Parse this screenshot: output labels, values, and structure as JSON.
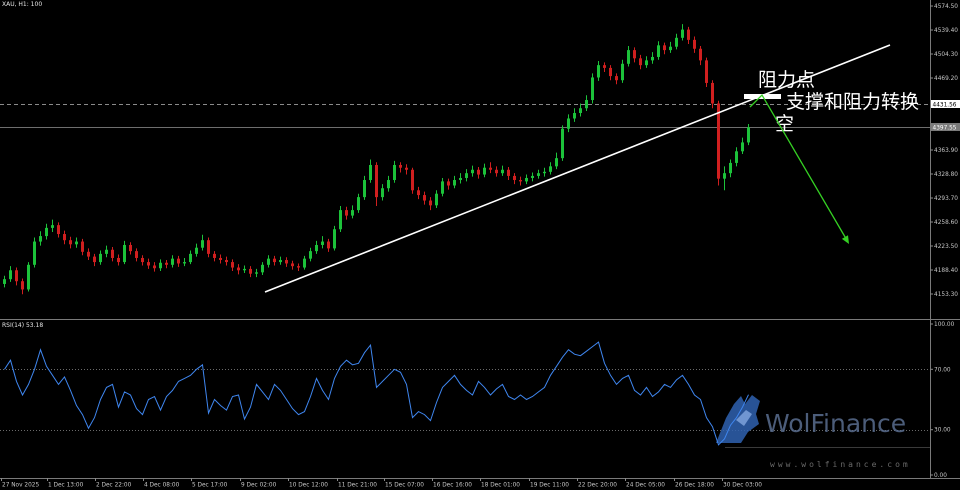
{
  "chart_data": [
    {
      "type": "candlestick",
      "title": "XAU, H1: 100",
      "x_ticks": [
        "27 Nov 2025",
        "1 Dec 13:00",
        "2 Dec 22:00",
        "4 Dec 08:00",
        "5 Dec 17:00",
        "9 Dec 02:00",
        "10 Dec 12:00",
        "11 Dec 21:00",
        "15 Dec 07:00",
        "16 Dec 16:00",
        "18 Dec 01:00",
        "19 Dec 11:00",
        "22 Dec 20:00",
        "24 Dec 05:00",
        "26 Dec 18:00",
        "30 Dec 03:00"
      ],
      "y_ticks": [
        "4574.50",
        "4539.40",
        "4504.30",
        "4469.20",
        "4363.90",
        "4328.80",
        "4293.70",
        "4258.60",
        "4223.50",
        "4188.40",
        "4153.30"
      ],
      "ylim": [
        4118.2,
        4583.3
      ],
      "grid": false,
      "levels": [
        {
          "label": "4431.56",
          "style": "dashed",
          "line_color": "#8a8a8a",
          "box_color": "#ffffff",
          "text_color": "#000000"
        },
        {
          "label": "4397.55",
          "style": "solid",
          "line_color": "#6e6e6e",
          "box_color": "#7a7a7a",
          "text_color": "#ffffff"
        }
      ],
      "colors": {
        "bull": "#1cc23a",
        "bear": "#d01f1f",
        "trendline": "#ffffff",
        "arrow": "#35d023"
      },
      "ohlc": [
        [
          4168,
          4180,
          4163,
          4175
        ],
        [
          4175,
          4194,
          4171,
          4188
        ],
        [
          4188,
          4192,
          4166,
          4172
        ],
        [
          4172,
          4176,
          4153,
          4160
        ],
        [
          4160,
          4200,
          4157,
          4196
        ],
        [
          4196,
          4236,
          4192,
          4230
        ],
        [
          4230,
          4245,
          4224,
          4238
        ],
        [
          4238,
          4256,
          4233,
          4250
        ],
        [
          4250,
          4262,
          4244,
          4254
        ],
        [
          4254,
          4258,
          4236,
          4241
        ],
        [
          4241,
          4246,
          4226,
          4232
        ],
        [
          4232,
          4237,
          4220,
          4226
        ],
        [
          4226,
          4236,
          4221,
          4230
        ],
        [
          4230,
          4234,
          4210,
          4215
        ],
        [
          4215,
          4220,
          4203,
          4208
        ],
        [
          4208,
          4212,
          4194,
          4200
        ],
        [
          4200,
          4217,
          4196,
          4212
        ],
        [
          4212,
          4224,
          4207,
          4218
        ],
        [
          4218,
          4222,
          4201,
          4206
        ],
        [
          4206,
          4211,
          4195,
          4200
        ],
        [
          4200,
          4231,
          4197,
          4225
        ],
        [
          4225,
          4229,
          4211,
          4216
        ],
        [
          4216,
          4220,
          4201,
          4206
        ],
        [
          4206,
          4210,
          4195,
          4200
        ],
        [
          4200,
          4205,
          4190,
          4195
        ],
        [
          4195,
          4200,
          4186,
          4191
        ],
        [
          4191,
          4204,
          4187,
          4199
        ],
        [
          4199,
          4203,
          4191,
          4196
        ],
        [
          4196,
          4210,
          4192,
          4205
        ],
        [
          4205,
          4209,
          4193,
          4198
        ],
        [
          4198,
          4206,
          4194,
          4200
        ],
        [
          4200,
          4217,
          4197,
          4212
        ],
        [
          4212,
          4227,
          4208,
          4221
        ],
        [
          4221,
          4240,
          4217,
          4232
        ],
        [
          4232,
          4236,
          4207,
          4212
        ],
        [
          4212,
          4216,
          4201,
          4206
        ],
        [
          4206,
          4211,
          4198,
          4203
        ],
        [
          4203,
          4208,
          4195,
          4200
        ],
        [
          4200,
          4204,
          4187,
          4192
        ],
        [
          4192,
          4197,
          4182,
          4188
        ],
        [
          4188,
          4195,
          4184,
          4190
        ],
        [
          4190,
          4194,
          4178,
          4183
        ],
        [
          4183,
          4190,
          4178,
          4185
        ],
        [
          4185,
          4200,
          4181,
          4196
        ],
        [
          4196,
          4210,
          4192,
          4205
        ],
        [
          4205,
          4209,
          4195,
          4200
        ],
        [
          4200,
          4208,
          4196,
          4203
        ],
        [
          4203,
          4207,
          4193,
          4198
        ],
        [
          4198,
          4202,
          4189,
          4194
        ],
        [
          4194,
          4198,
          4187,
          4192
        ],
        [
          4192,
          4209,
          4189,
          4205
        ],
        [
          4205,
          4221,
          4201,
          4216
        ],
        [
          4216,
          4231,
          4212,
          4225
        ],
        [
          4225,
          4238,
          4220,
          4230
        ],
        [
          4230,
          4234,
          4215,
          4220
        ],
        [
          4220,
          4253,
          4217,
          4248
        ],
        [
          4248,
          4282,
          4244,
          4276
        ],
        [
          4276,
          4281,
          4262,
          4268
        ],
        [
          4268,
          4283,
          4264,
          4276
        ],
        [
          4276,
          4300,
          4272,
          4295
        ],
        [
          4295,
          4326,
          4291,
          4320
        ],
        [
          4320,
          4350,
          4316,
          4342
        ],
        [
          4342,
          4346,
          4282,
          4295
        ],
        [
          4295,
          4314,
          4290,
          4308
        ],
        [
          4308,
          4326,
          4303,
          4320
        ],
        [
          4320,
          4348,
          4316,
          4342
        ],
        [
          4342,
          4346,
          4331,
          4338
        ],
        [
          4338,
          4343,
          4328,
          4335
        ],
        [
          4335,
          4338,
          4300,
          4305
        ],
        [
          4305,
          4310,
          4292,
          4298
        ],
        [
          4298,
          4303,
          4284,
          4290
        ],
        [
          4290,
          4295,
          4276,
          4283
        ],
        [
          4283,
          4305,
          4279,
          4300
        ],
        [
          4300,
          4323,
          4296,
          4318
        ],
        [
          4318,
          4322,
          4306,
          4312
        ],
        [
          4312,
          4326,
          4308,
          4320
        ],
        [
          4320,
          4330,
          4315,
          4323
        ],
        [
          4323,
          4336,
          4318,
          4330
        ],
        [
          4330,
          4341,
          4325,
          4335
        ],
        [
          4335,
          4339,
          4322,
          4328
        ],
        [
          4328,
          4344,
          4324,
          4338
        ],
        [
          4338,
          4346,
          4330,
          4335
        ],
        [
          4335,
          4340,
          4325,
          4330
        ],
        [
          4330,
          4341,
          4326,
          4335
        ],
        [
          4335,
          4339,
          4320,
          4326
        ],
        [
          4326,
          4330,
          4314,
          4320
        ],
        [
          4320,
          4325,
          4312,
          4318
        ],
        [
          4318,
          4328,
          4314,
          4323
        ],
        [
          4323,
          4331,
          4318,
          4326
        ],
        [
          4326,
          4335,
          4322,
          4330
        ],
        [
          4330,
          4338,
          4325,
          4332
        ],
        [
          4332,
          4346,
          4328,
          4340
        ],
        [
          4340,
          4360,
          4336,
          4352
        ],
        [
          4352,
          4400,
          4348,
          4395
        ],
        [
          4395,
          4416,
          4390,
          4410
        ],
        [
          4410,
          4425,
          4405,
          4418
        ],
        [
          4418,
          4432,
          4413,
          4425
        ],
        [
          4425,
          4444,
          4421,
          4437
        ],
        [
          4437,
          4476,
          4432,
          4470
        ],
        [
          4470,
          4494,
          4465,
          4488
        ],
        [
          4488,
          4492,
          4478,
          4484
        ],
        [
          4484,
          4488,
          4466,
          4472
        ],
        [
          4472,
          4476,
          4460,
          4466
        ],
        [
          4466,
          4496,
          4462,
          4490
        ],
        [
          4490,
          4516,
          4486,
          4510
        ],
        [
          4510,
          4514,
          4492,
          4498
        ],
        [
          4498,
          4503,
          4482,
          4488
        ],
        [
          4488,
          4501,
          4484,
          4495
        ],
        [
          4495,
          4507,
          4490,
          4500
        ],
        [
          4500,
          4523,
          4496,
          4517
        ],
        [
          4517,
          4521,
          4504,
          4510
        ],
        [
          4510,
          4522,
          4506,
          4515
        ],
        [
          4515,
          4534,
          4511,
          4528
        ],
        [
          4528,
          4548,
          4524,
          4540
        ],
        [
          4540,
          4544,
          4519,
          4525
        ],
        [
          4525,
          4530,
          4506,
          4512
        ],
        [
          4512,
          4516,
          4488,
          4495
        ],
        [
          4495,
          4499,
          4456,
          4462
        ],
        [
          4462,
          4466,
          4425,
          4432
        ],
        [
          4432,
          4436,
          4312,
          4322
        ],
        [
          4322,
          4340,
          4305,
          4330
        ],
        [
          4330,
          4350,
          4324,
          4345
        ],
        [
          4345,
          4368,
          4340,
          4362
        ],
        [
          4362,
          4382,
          4358,
          4375
        ],
        [
          4375,
          4402,
          4371,
          4397
        ]
      ]
    },
    {
      "type": "line",
      "label": "RSI(14) 53.18",
      "ylim": [
        0,
        100
      ],
      "y_ticks": [
        "100.00",
        "70.00",
        "30.00",
        "0.00"
      ],
      "levels": [
        70,
        30
      ],
      "color": "#3f86ef",
      "values": [
        70,
        76,
        62,
        53,
        60,
        70,
        83,
        72,
        66,
        60,
        65,
        56,
        46,
        40,
        31,
        38,
        50,
        58,
        60,
        45,
        55,
        53,
        44,
        40,
        50,
        52,
        43,
        52,
        56,
        62,
        64,
        66,
        70,
        73,
        41,
        50,
        46,
        43,
        52,
        53,
        37,
        45,
        60,
        55,
        50,
        60,
        56,
        50,
        44,
        40,
        42,
        52,
        64,
        56,
        50,
        64,
        72,
        76,
        73,
        74,
        81,
        86,
        58,
        62,
        66,
        70,
        68,
        60,
        38,
        42,
        40,
        36,
        48,
        58,
        62,
        66,
        60,
        56,
        53,
        62,
        58,
        53,
        57,
        60,
        52,
        50,
        53,
        50,
        52,
        55,
        58,
        66,
        72,
        78,
        83,
        80,
        79,
        82,
        85,
        88,
        74,
        66,
        60,
        64,
        66,
        56,
        53,
        58,
        52,
        55,
        60,
        58,
        63,
        66,
        60,
        53,
        50,
        38,
        32,
        20,
        24,
        33,
        38,
        45,
        53.18
      ]
    }
  ],
  "annotations": {
    "resistance_point": "阻力点",
    "sr_flip_line1": "支撑和阻力转换",
    "sr_flip_line2": "空"
  },
  "watermark": {
    "brand": "WolFinance",
    "url": "www.wolfinance.com",
    "logo_icon": "wolf-icon"
  },
  "theme": {
    "background": "#000000",
    "axis_text": "#c8c8c8",
    "frame": "#7a7a7a"
  }
}
